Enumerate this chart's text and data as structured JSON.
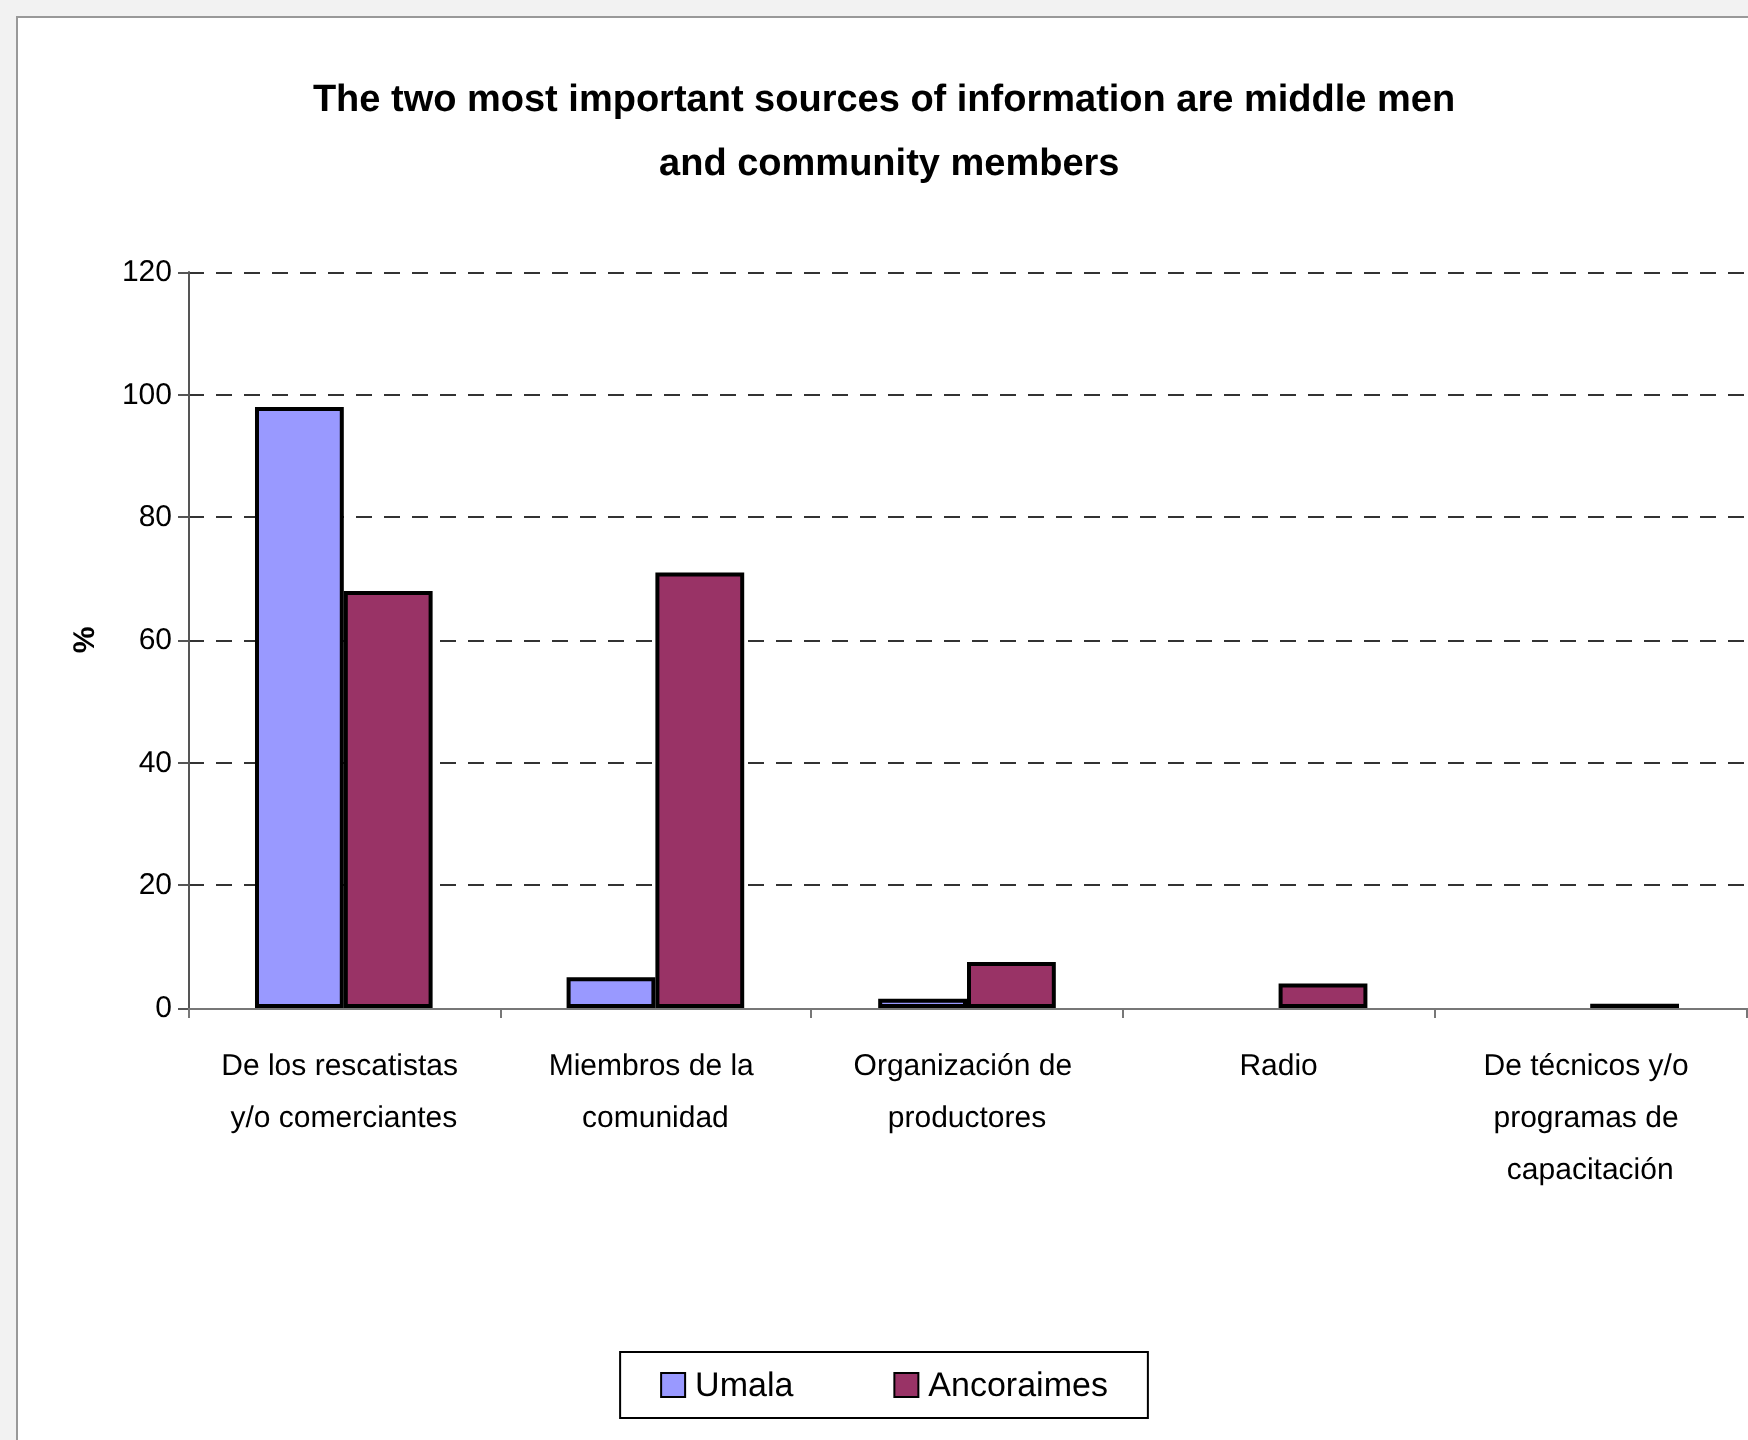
{
  "chart_data": {
    "type": "bar",
    "title": "The two most important sources of information are middle men and community members",
    "categories": [
      "De los rescatistas y/o comerciantes",
      "Miembros de la comunidad",
      "Organización de productores",
      "Radio",
      "De técnicos y/o programas de capacitación"
    ],
    "series": [
      {
        "name": "Umala",
        "color": "#9999ff",
        "values": [
          98,
          5,
          1.5,
          null,
          null
        ]
      },
      {
        "name": "Ancoraimes",
        "color": "#993366",
        "values": [
          68,
          71,
          7.5,
          4,
          0.7
        ]
      }
    ],
    "ylabel": "%",
    "ylim": [
      0,
      120
    ],
    "yticks": [
      0,
      20,
      40,
      60,
      80,
      100,
      120
    ],
    "grid": "y",
    "legend": "bottom"
  }
}
